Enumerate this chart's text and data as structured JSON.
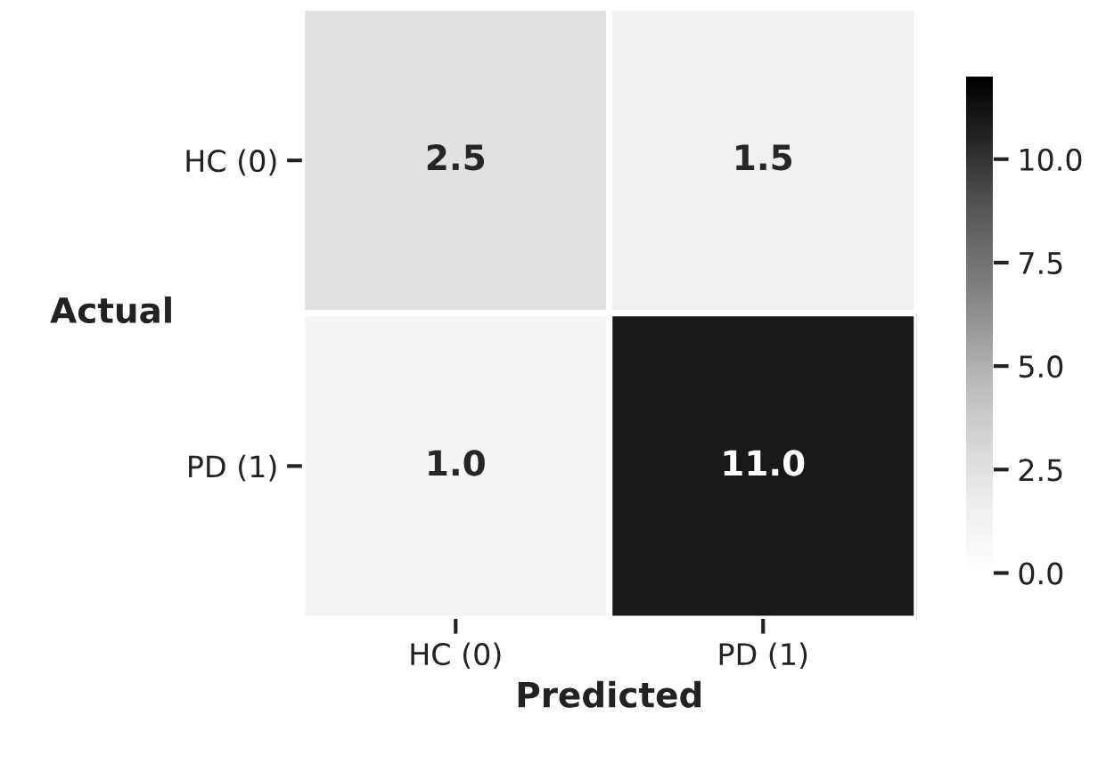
{
  "chart_data": {
    "type": "heatmap",
    "xlabel": "Predicted",
    "ylabel": "Actual",
    "categories": [
      "HC (0)",
      "PD (1)"
    ],
    "y_categories": [
      "HC (0)",
      "PD (1)"
    ],
    "cells": [
      [
        2.5,
        1.5
      ],
      [
        1.0,
        11.0
      ]
    ],
    "cell_labels": [
      [
        "2.5",
        "1.5"
      ],
      [
        "1.0",
        "11.0"
      ]
    ],
    "clim": [
      0,
      12
    ],
    "cticks": [
      {
        "value": 0,
        "label": "0.0"
      },
      {
        "value": 2.5,
        "label": "2.5"
      },
      {
        "value": 5,
        "label": "5.0"
      },
      {
        "value": 7.5,
        "label": "7.5"
      },
      {
        "value": 10,
        "label": "10.0"
      }
    ]
  }
}
